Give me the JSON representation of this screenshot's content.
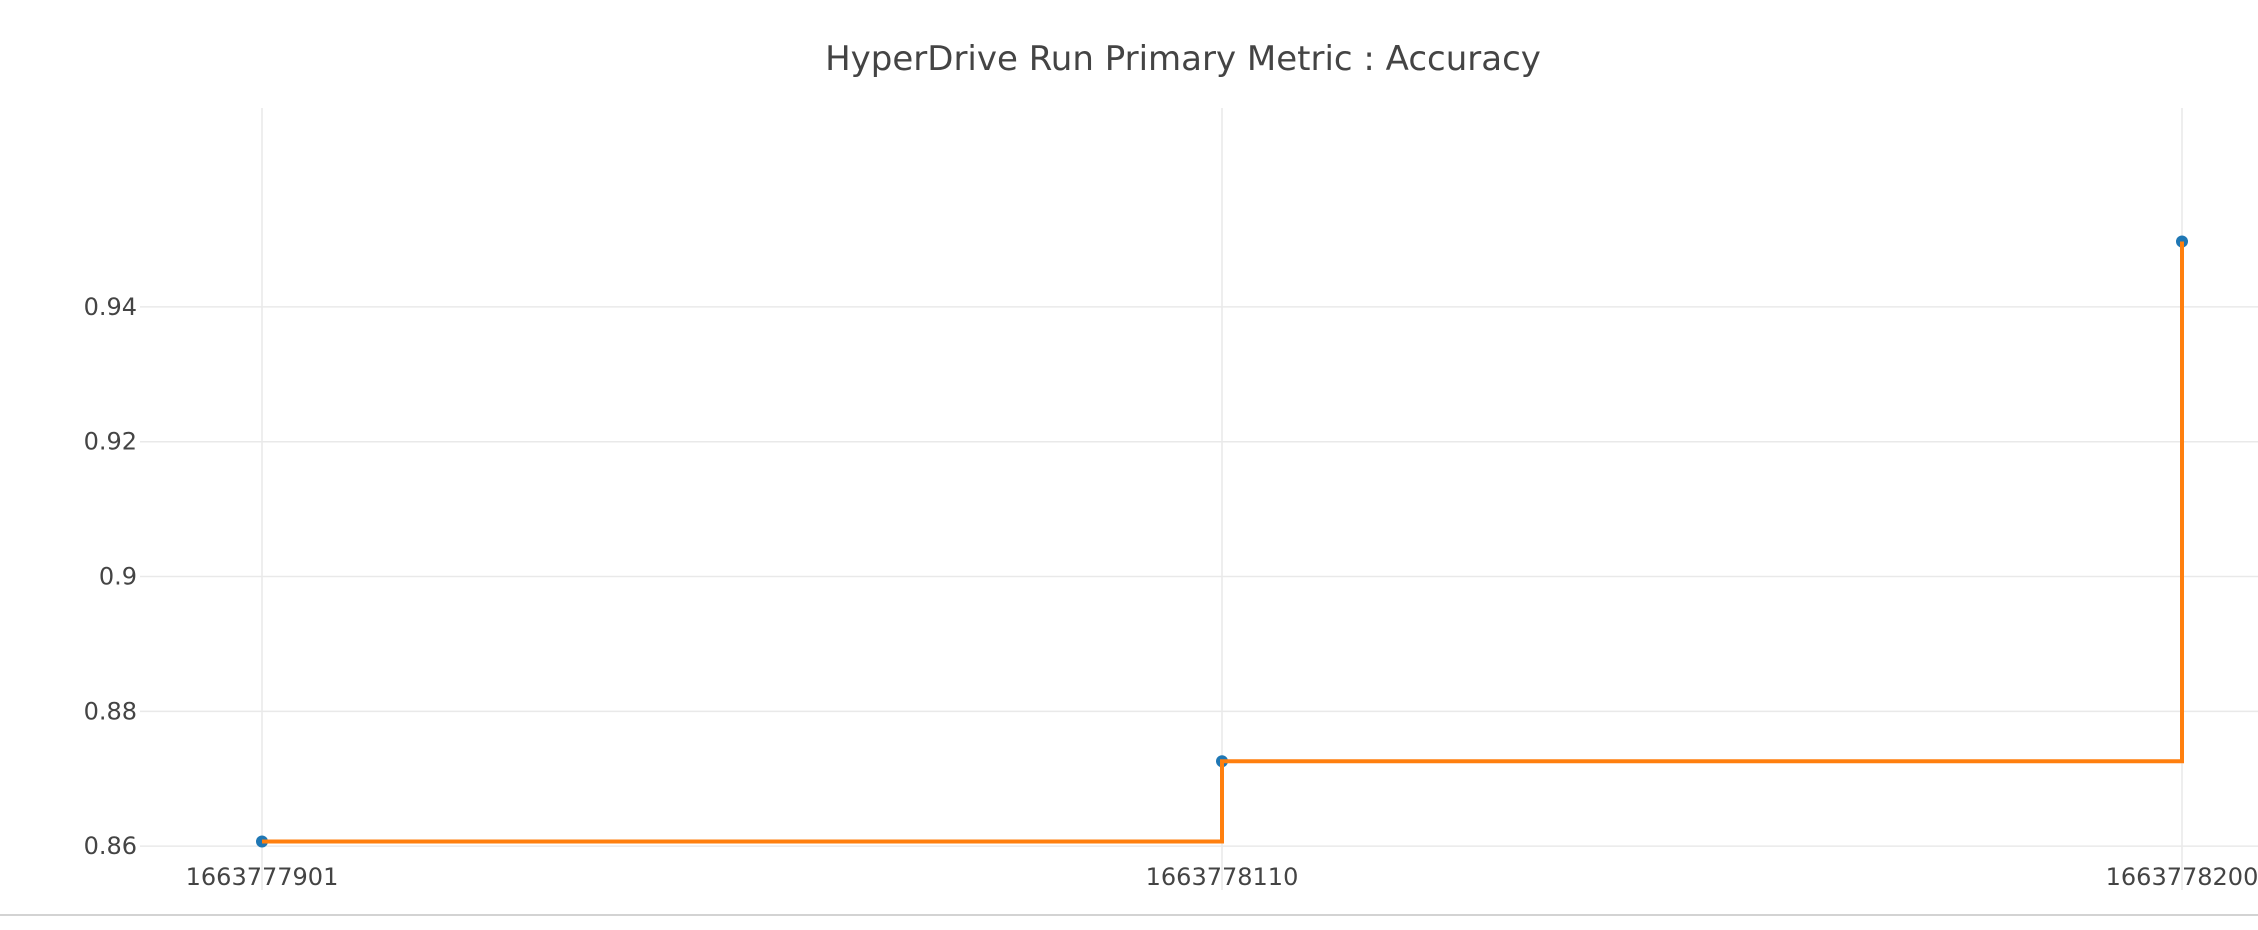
{
  "chart_data": {
    "type": "line",
    "title": "HyperDrive Run Primary Metric : Accuracy",
    "xlabel": "",
    "ylabel": "",
    "x_tick_labels": [
      "1663777901",
      "1663778110",
      "1663778200"
    ],
    "y_tick_labels": [
      "0.86",
      "0.88",
      "0.9",
      "0.92",
      "0.94"
    ],
    "y_ticks": [
      0.86,
      0.88,
      0.9,
      0.92,
      0.94
    ],
    "ylim": [
      0.8535,
      0.9695
    ],
    "grid": true,
    "series": [
      {
        "mode": "markers",
        "x_index": [
          0,
          1,
          2
        ],
        "values": [
          0.8607,
          0.8726,
          0.9497
        ],
        "color": "#1f77b4"
      },
      {
        "mode": "step",
        "x_index": [
          0,
          1,
          2
        ],
        "values": [
          0.8607,
          0.8726,
          0.9497
        ],
        "color": "#ff7f0e"
      }
    ]
  }
}
